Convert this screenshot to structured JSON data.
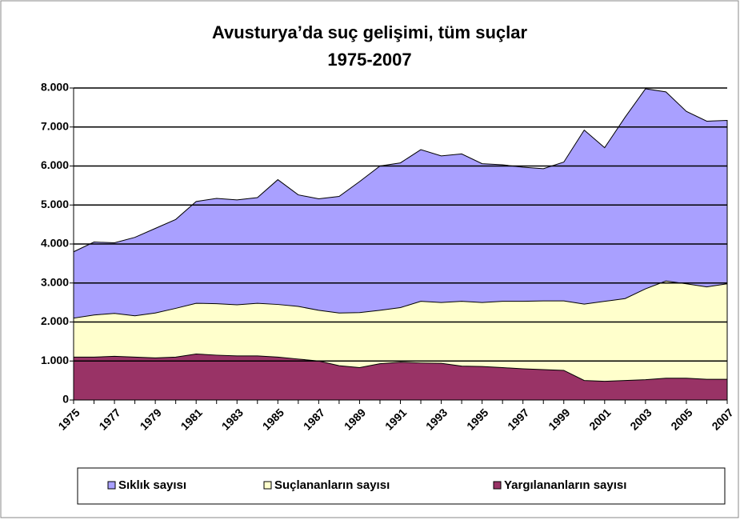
{
  "chart_data": {
    "type": "area",
    "title": "Avusturya’da suç gelişimi, tüm suçlar",
    "subtitle": "1975-2007",
    "categories": [
      "1975",
      null,
      "1977",
      null,
      "1979",
      null,
      "1981",
      null,
      "1983",
      null,
      "1985",
      null,
      "1987",
      null,
      "1989",
      null,
      "1991",
      null,
      "1993",
      null,
      "1995",
      null,
      "1997",
      null,
      "1999",
      null,
      "2001",
      null,
      "2003",
      null,
      "2005",
      null,
      "2007"
    ],
    "series": [
      {
        "name": "Sıklık sayısı",
        "color": "#a9a0ff",
        "values": [
          3800,
          4050,
          4030,
          4170,
          4400,
          4630,
          5090,
          5170,
          5130,
          5190,
          5650,
          5260,
          5160,
          5220,
          5600,
          6000,
          6080,
          6420,
          6260,
          6310,
          6060,
          6030,
          5970,
          5930,
          6100,
          6920,
          6470,
          7250,
          7980,
          7900,
          7400,
          7150,
          7170
        ]
      },
      {
        "name": "Suçlananların sayısı",
        "color": "#ffffcc",
        "values": [
          2100,
          2180,
          2220,
          2160,
          2230,
          2350,
          2480,
          2470,
          2440,
          2480,
          2450,
          2400,
          2300,
          2230,
          2240,
          2300,
          2370,
          2530,
          2500,
          2530,
          2500,
          2530,
          2530,
          2540,
          2540,
          2460,
          2530,
          2600,
          2850,
          3050,
          2980,
          2900,
          2980
        ]
      },
      {
        "name": "Yargılananların sayısı",
        "color": "#993366",
        "values": [
          1100,
          1100,
          1120,
          1100,
          1080,
          1100,
          1180,
          1150,
          1130,
          1130,
          1100,
          1050,
          1000,
          880,
          830,
          930,
          970,
          950,
          940,
          870,
          860,
          830,
          800,
          780,
          760,
          500,
          480,
          500,
          520,
          560,
          560,
          530,
          530
        ]
      }
    ],
    "ylim": [
      0,
      8000
    ],
    "yticks": [
      0,
      {
        "value": 1000,
        "label": "1.000"
      },
      {
        "value": 2000,
        "label": "2.000"
      },
      {
        "value": 3000,
        "label": "3.000"
      },
      {
        "value": 4000,
        "label": "4.000"
      },
      {
        "value": 5000,
        "label": "5.000"
      },
      {
        "value": 6000,
        "label": "6.000"
      },
      {
        "value": 7000,
        "label": "7.000"
      },
      {
        "value": 8000,
        "label": "8.000"
      }
    ],
    "grid": true,
    "legend": "bottom"
  }
}
